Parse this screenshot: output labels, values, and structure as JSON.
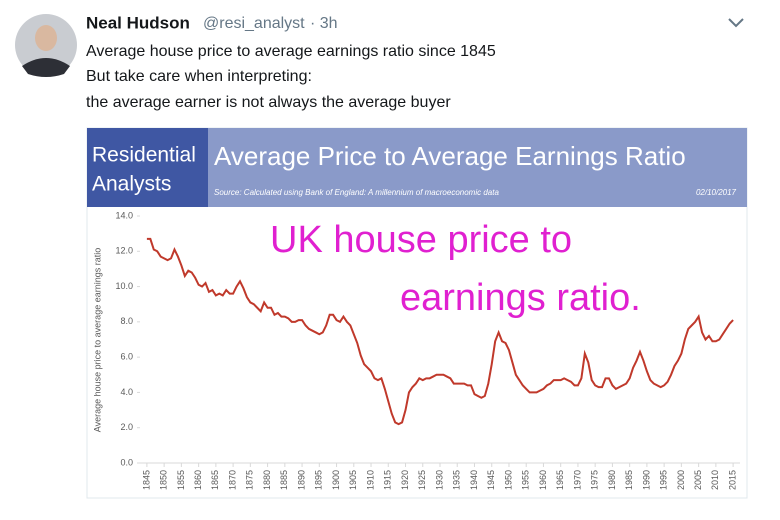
{
  "tweet": {
    "name": "Neal Hudson",
    "handle": "@resi_analyst",
    "time": "· 3h",
    "lines": [
      "Average house price to average earnings ratio since 1845",
      "But take care when interpreting:",
      "the average earner is not always the average buyer"
    ]
  },
  "chart_data": {
    "type": "line",
    "logo": [
      "Residential",
      "Analysts"
    ],
    "title": "Average Price to Average Earnings Ratio",
    "source": "Source: Calculated using Bank of England: A millennium of macroeconomic data",
    "date": "02/10/2017",
    "ylabel": "Average house price to average earnings ratio",
    "annotation": [
      "UK house price to",
      "earnings ratio."
    ],
    "color": "#c0392b",
    "x": [
      1845,
      1846,
      1847,
      1848,
      1849,
      1850,
      1851,
      1852,
      1853,
      1854,
      1855,
      1856,
      1857,
      1858,
      1859,
      1860,
      1861,
      1862,
      1863,
      1864,
      1865,
      1866,
      1867,
      1868,
      1869,
      1870,
      1871,
      1872,
      1873,
      1874,
      1875,
      1876,
      1877,
      1878,
      1879,
      1880,
      1881,
      1882,
      1883,
      1884,
      1885,
      1886,
      1887,
      1888,
      1889,
      1890,
      1891,
      1892,
      1893,
      1894,
      1895,
      1896,
      1897,
      1898,
      1899,
      1900,
      1901,
      1902,
      1903,
      1904,
      1905,
      1906,
      1907,
      1908,
      1909,
      1910,
      1911,
      1912,
      1913,
      1914,
      1915,
      1916,
      1917,
      1918,
      1919,
      1920,
      1921,
      1922,
      1923,
      1924,
      1925,
      1926,
      1927,
      1928,
      1929,
      1930,
      1931,
      1932,
      1933,
      1934,
      1935,
      1936,
      1937,
      1938,
      1939,
      1940,
      1941,
      1942,
      1943,
      1944,
      1945,
      1946,
      1947,
      1948,
      1949,
      1950,
      1951,
      1952,
      1953,
      1954,
      1955,
      1956,
      1957,
      1958,
      1959,
      1960,
      1961,
      1962,
      1963,
      1964,
      1965,
      1966,
      1967,
      1968,
      1969,
      1970,
      1971,
      1972,
      1973,
      1974,
      1975,
      1976,
      1977,
      1978,
      1979,
      1980,
      1981,
      1982,
      1983,
      1984,
      1985,
      1986,
      1987,
      1988,
      1989,
      1990,
      1991,
      1992,
      1993,
      1994,
      1995,
      1996,
      1997,
      1998,
      1999,
      2000,
      2001,
      2002,
      2003,
      2004,
      2005,
      2006,
      2007,
      2008,
      2009,
      2010,
      2011,
      2012,
      2013,
      2014,
      2015
    ],
    "values": [
      12.7,
      12.7,
      12.1,
      12.0,
      11.7,
      11.6,
      11.5,
      11.6,
      12.1,
      11.7,
      11.2,
      10.6,
      10.9,
      10.8,
      10.5,
      10.1,
      10.0,
      10.2,
      9.7,
      9.8,
      9.5,
      9.6,
      9.5,
      9.8,
      9.6,
      9.6,
      10.0,
      10.3,
      9.9,
      9.4,
      9.1,
      9.0,
      8.8,
      8.6,
      9.1,
      8.8,
      8.8,
      8.4,
      8.5,
      8.3,
      8.3,
      8.2,
      8.0,
      8.0,
      8.1,
      8.1,
      7.8,
      7.6,
      7.5,
      7.4,
      7.3,
      7.4,
      7.8,
      8.4,
      8.4,
      8.1,
      8.0,
      8.3,
      8.0,
      7.8,
      7.3,
      6.8,
      6.1,
      5.6,
      5.4,
      5.2,
      4.8,
      4.7,
      4.8,
      4.2,
      3.5,
      2.8,
      2.3,
      2.2,
      2.3,
      3.0,
      4.0,
      4.3,
      4.5,
      4.8,
      4.7,
      4.8,
      4.8,
      4.9,
      5.0,
      5.0,
      5.0,
      4.9,
      4.8,
      4.5,
      4.5,
      4.5,
      4.5,
      4.4,
      4.4,
      3.9,
      3.8,
      3.7,
      3.8,
      4.5,
      5.6,
      6.9,
      7.4,
      6.9,
      6.8,
      6.4,
      5.7,
      5.0,
      4.7,
      4.4,
      4.2,
      4.0,
      4.0,
      4.0,
      4.1,
      4.2,
      4.4,
      4.5,
      4.7,
      4.7,
      4.7,
      4.8,
      4.7,
      4.6,
      4.4,
      4.4,
      4.8,
      6.2,
      5.7,
      4.7,
      4.4,
      4.3,
      4.3,
      4.8,
      4.8,
      4.4,
      4.2,
      4.3,
      4.4,
      4.5,
      4.8,
      5.4,
      5.8,
      6.3,
      5.8,
      5.2,
      4.7,
      4.5,
      4.4,
      4.3,
      4.4,
      4.6,
      5.0,
      5.5,
      5.8,
      6.2,
      7.0,
      7.6,
      7.8,
      8.0,
      8.3,
      7.4,
      7.0,
      7.2,
      6.9,
      6.9,
      7.0,
      7.3,
      7.6,
      7.9,
      8.1
    ],
    "xlim": [
      1843,
      2017
    ],
    "xticks": [
      1845,
      1850,
      1855,
      1860,
      1865,
      1870,
      1875,
      1880,
      1885,
      1890,
      1895,
      1900,
      1905,
      1910,
      1915,
      1920,
      1925,
      1930,
      1935,
      1940,
      1945,
      1950,
      1955,
      1960,
      1965,
      1970,
      1975,
      1980,
      1985,
      1990,
      1995,
      2000,
      2005,
      2010,
      2015
    ],
    "ylim": [
      0,
      14
    ],
    "yticks": [
      {
        "value": 0,
        "label": "0.0"
      },
      {
        "value": 2,
        "label": "2.0"
      },
      {
        "value": 4,
        "label": "4.0"
      },
      {
        "value": 6,
        "label": "6.0"
      },
      {
        "value": 8,
        "label": "8.0"
      },
      {
        "value": 10,
        "label": "10.0"
      },
      {
        "value": 12,
        "label": "12.0"
      },
      {
        "value": 14,
        "label": "14.0"
      }
    ]
  }
}
